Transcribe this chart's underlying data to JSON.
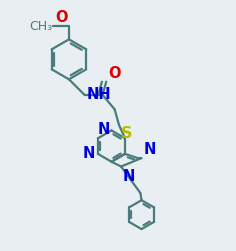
{
  "bg_color": "#e8eef2",
  "bond_color": "#4a7c7c",
  "n_color": "#0000dd",
  "o_color": "#dd0000",
  "s_color": "#bbbb00",
  "lw": 1.6,
  "fontsize": 10.5,
  "xlim": [
    0.05,
    0.95
  ],
  "ylim": [
    0.02,
    0.98
  ]
}
